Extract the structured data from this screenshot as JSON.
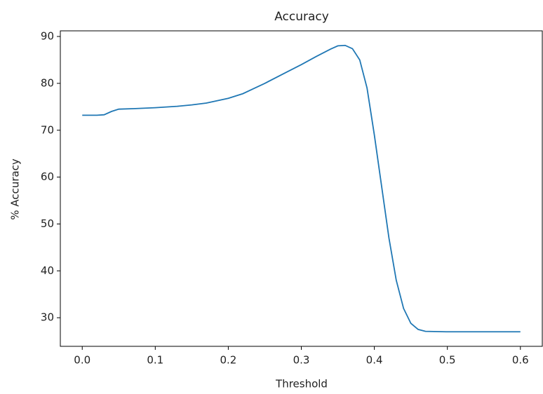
{
  "chart_data": {
    "type": "line",
    "title": "Accuracy",
    "x_label": "Threshold",
    "y_label": "% Accuracy",
    "x": [
      0.0,
      0.01,
      0.02,
      0.03,
      0.04,
      0.05,
      0.07,
      0.1,
      0.13,
      0.15,
      0.17,
      0.2,
      0.22,
      0.25,
      0.28,
      0.3,
      0.32,
      0.34,
      0.35,
      0.36,
      0.37,
      0.38,
      0.39,
      0.4,
      0.41,
      0.42,
      0.43,
      0.44,
      0.45,
      0.46,
      0.47,
      0.5,
      0.55,
      0.6
    ],
    "series": [
      {
        "color": "#1f77b4",
        "values": [
          73.2,
          73.2,
          73.2,
          73.3,
          74,
          74.5,
          74.6,
          74.8,
          75.1,
          75.4,
          75.8,
          76.8,
          77.8,
          80,
          82.4,
          84,
          85.7,
          87.3,
          88,
          88.1,
          87.4,
          85,
          79,
          69,
          58,
          47,
          38,
          32,
          28.8,
          27.5,
          27.1,
          27,
          27,
          27
        ]
      }
    ],
    "xlim": [
      -0.03,
      0.63
    ],
    "ylim": [
      23.9,
      91.2
    ],
    "xticks": [
      {
        "value": 0,
        "label": "0.0"
      },
      0.1,
      0.2,
      0.3,
      0.4,
      0.5,
      0.6
    ],
    "yticks": [
      30,
      40,
      50,
      60,
      70,
      80,
      90
    ]
  }
}
